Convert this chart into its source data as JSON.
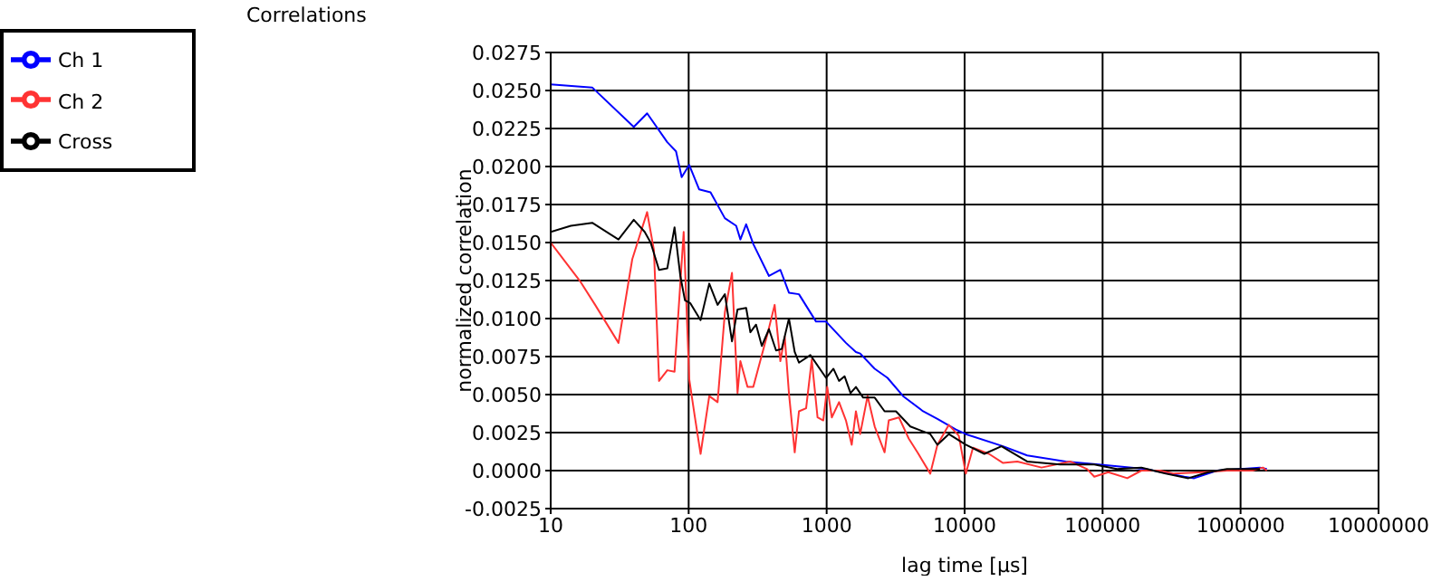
{
  "chart_data": {
    "type": "line",
    "title": "Correlations",
    "xlabel": "lag time [µs]",
    "ylabel": "normalized correlation",
    "log": "x",
    "grid": true,
    "legend": "top left",
    "xlim": [
      10,
      10000000
    ],
    "xticks": [
      10,
      100,
      1000,
      10000,
      100000,
      1000000,
      10000000
    ],
    "ylim": [
      -0.0025,
      0.0275
    ],
    "yticks": [
      {
        "value": -0.0025,
        "label": "-0.0025"
      },
      {
        "value": 0,
        "label": "0.0000"
      },
      {
        "value": 0.0025,
        "label": "0.0025"
      },
      {
        "value": 0.005,
        "label": "0.0050"
      },
      {
        "value": 0.0075,
        "label": "0.0075"
      },
      {
        "value": 0.01,
        "label": "0.0100"
      },
      {
        "value": 0.0125,
        "label": "0.0125"
      },
      {
        "value": 0.015,
        "label": "0.0150"
      },
      {
        "value": 0.0175,
        "label": "0.0175"
      },
      {
        "value": 0.02,
        "label": "0.0200"
      },
      {
        "value": 0.0225,
        "label": "0.0225"
      },
      {
        "value": 0.025,
        "label": "0.0250"
      },
      {
        "value": 0.0275,
        "label": "0.0275"
      }
    ],
    "series": [
      {
        "name": "Ch 1",
        "color": "#0000ff",
        "x": [
          10,
          20,
          40,
          50,
          70,
          81,
          89,
          101,
          119,
          144,
          183,
          221,
          237,
          261,
          294,
          382,
          462,
          533,
          630,
          838,
          990,
          1380,
          1630,
          1750,
          2230,
          2760,
          3580,
          5000,
          6350,
          8650,
          10200,
          19000,
          28400,
          54000,
          93500,
          205000,
          391000,
          461000,
          675000,
          1010000,
          1380000,
          1550000
        ],
        "values": [
          0.0254,
          0.0252,
          0.0226,
          0.0235,
          0.0216,
          0.021,
          0.0193,
          0.0201,
          0.0185,
          0.0183,
          0.0166,
          0.0161,
          0.0152,
          0.0162,
          0.0149,
          0.0128,
          0.0132,
          0.0117,
          0.0116,
          0.0098,
          0.0098,
          0.0084,
          0.0078,
          0.0077,
          0.0067,
          0.0061,
          0.0049,
          0.0039,
          0.0034,
          0.0027,
          0.0024,
          0.0016,
          0.001,
          0.0006,
          0.0004,
          0.0001,
          -0.0004,
          -0.0005,
          0,
          0.0001,
          0.0002,
          0.0001
        ]
      },
      {
        "name": "Ch 2",
        "color": "#ff3333",
        "x": [
          10,
          16.5,
          21,
          31,
          39,
          50,
          56,
          61,
          70,
          79,
          92,
          101,
          111,
          122,
          141,
          162,
          183,
          206,
          226,
          237,
          267,
          294,
          373,
          420,
          462,
          497,
          533,
          587,
          630,
          710,
          780,
          859,
          945,
          1010,
          1090,
          1230,
          1380,
          1520,
          1630,
          1750,
          1980,
          2230,
          2630,
          2820,
          3340,
          3940,
          4550,
          5640,
          6350,
          7680,
          9070,
          10200,
          11500,
          15000,
          19000,
          24100,
          36100,
          58100,
          77300,
          87100,
          110000,
          151000,
          191000,
          260000,
          330000,
          532000,
          798000,
          1220000,
          1450000,
          1550000
        ],
        "values": [
          0.015,
          0.0124,
          0.0109,
          0.0084,
          0.0139,
          0.017,
          0.0145,
          0.0059,
          0.0066,
          0.0065,
          0.0157,
          0.006,
          0.0035,
          0.0011,
          0.0049,
          0.0045,
          0.0104,
          0.013,
          0.0051,
          0.0072,
          0.0055,
          0.0055,
          0.009,
          0.0109,
          0.0072,
          0.0088,
          0.0051,
          0.0012,
          0.0039,
          0.0041,
          0.0073,
          0.0035,
          0.0033,
          0.0055,
          0.0035,
          0.0045,
          0.0033,
          0.0017,
          0.0039,
          0.0024,
          0.0049,
          0.0029,
          0.0012,
          0.0033,
          0.0035,
          0.0021,
          0.0012,
          -0.0002,
          0.0017,
          0.003,
          0.0023,
          -0.0002,
          0.0015,
          0.0011,
          0.0005,
          0.0006,
          0.0002,
          0.0006,
          0.0001,
          -0.0004,
          -0.0001,
          -0.0005,
          0,
          0,
          -0.0002,
          -0.0001,
          0,
          0,
          0.0002,
          0
        ]
      },
      {
        "name": "Cross",
        "color": "#000000",
        "x": [
          10,
          14,
          20,
          31,
          40,
          48,
          53,
          61,
          70,
          79,
          87,
          94,
          103,
          122,
          141,
          162,
          183,
          206,
          226,
          261,
          280,
          308,
          339,
          382,
          430,
          473,
          533,
          587,
          630,
          762,
          990,
          1120,
          1230,
          1350,
          1490,
          1630,
          1840,
          2230,
          2630,
          3180,
          4040,
          5640,
          6350,
          7680,
          10200,
          13900,
          18500,
          28400,
          49200,
          87100,
          127000,
          191000,
          287000,
          419000,
          585000,
          798000,
          1380000
        ],
        "values": [
          0.0157,
          0.0161,
          0.0163,
          0.0152,
          0.0165,
          0.0157,
          0.015,
          0.0132,
          0.0133,
          0.016,
          0.0128,
          0.0112,
          0.011,
          0.0099,
          0.0123,
          0.0109,
          0.0116,
          0.0085,
          0.0106,
          0.0107,
          0.0091,
          0.0096,
          0.0082,
          0.0093,
          0.0079,
          0.008,
          0.01,
          0.0078,
          0.0071,
          0.0076,
          0.0061,
          0.0067,
          0.0059,
          0.0062,
          0.0051,
          0.0055,
          0.0048,
          0.0048,
          0.0039,
          0.0039,
          0.0029,
          0.0024,
          0.0017,
          0.0024,
          0.0017,
          0.0011,
          0.0016,
          0.0006,
          0.0004,
          0.0004,
          0.0001,
          0.0002,
          -0.0002,
          -0.0005,
          -0.0001,
          0.0001,
          0.0001
        ]
      }
    ]
  }
}
